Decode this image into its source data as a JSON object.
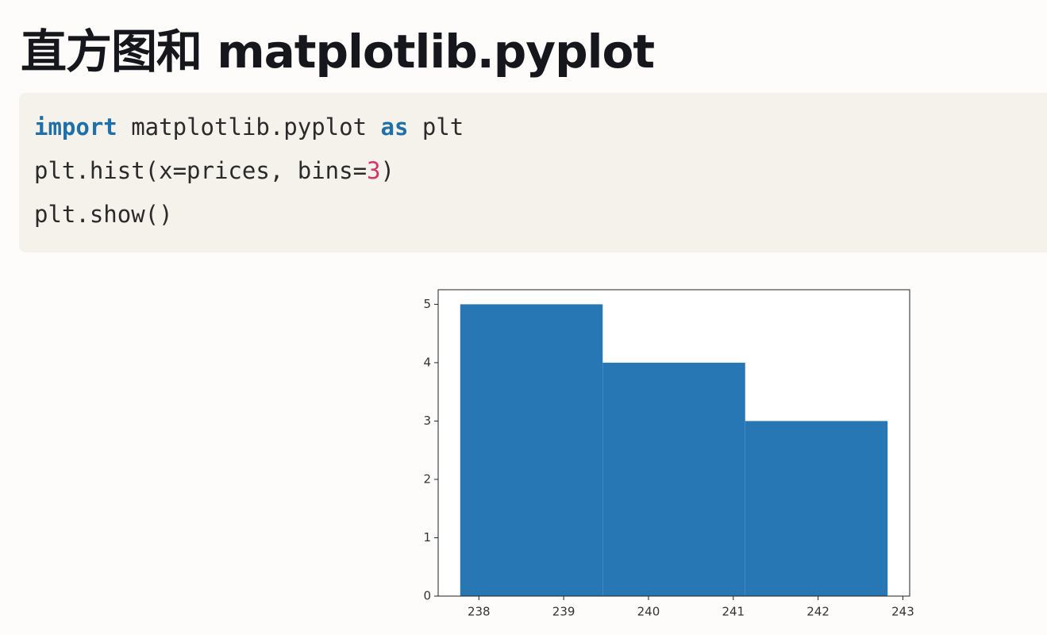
{
  "title": "直方图和 matplotlib.pyplot",
  "code": {
    "lines": [
      [
        "import",
        " matplotlib.pyplot ",
        "as",
        " plt"
      ],
      [
        "plt.hist(x=prices, bins=",
        "3",
        ")"
      ],
      [
        "plt.show()"
      ]
    ]
  },
  "chart_data": {
    "type": "histogram",
    "bins": [
      237.78,
      239.46,
      241.14,
      242.82
    ],
    "values": [
      5,
      4,
      3
    ],
    "color": "#2677b4",
    "xlim": [
      237.52,
      243.08
    ],
    "xticks": [
      238,
      239,
      240,
      241,
      242,
      243
    ],
    "ylim": [
      0,
      5.25
    ],
    "yticks": [
      0,
      1,
      2,
      3,
      4,
      5
    ],
    "grid": false
  }
}
